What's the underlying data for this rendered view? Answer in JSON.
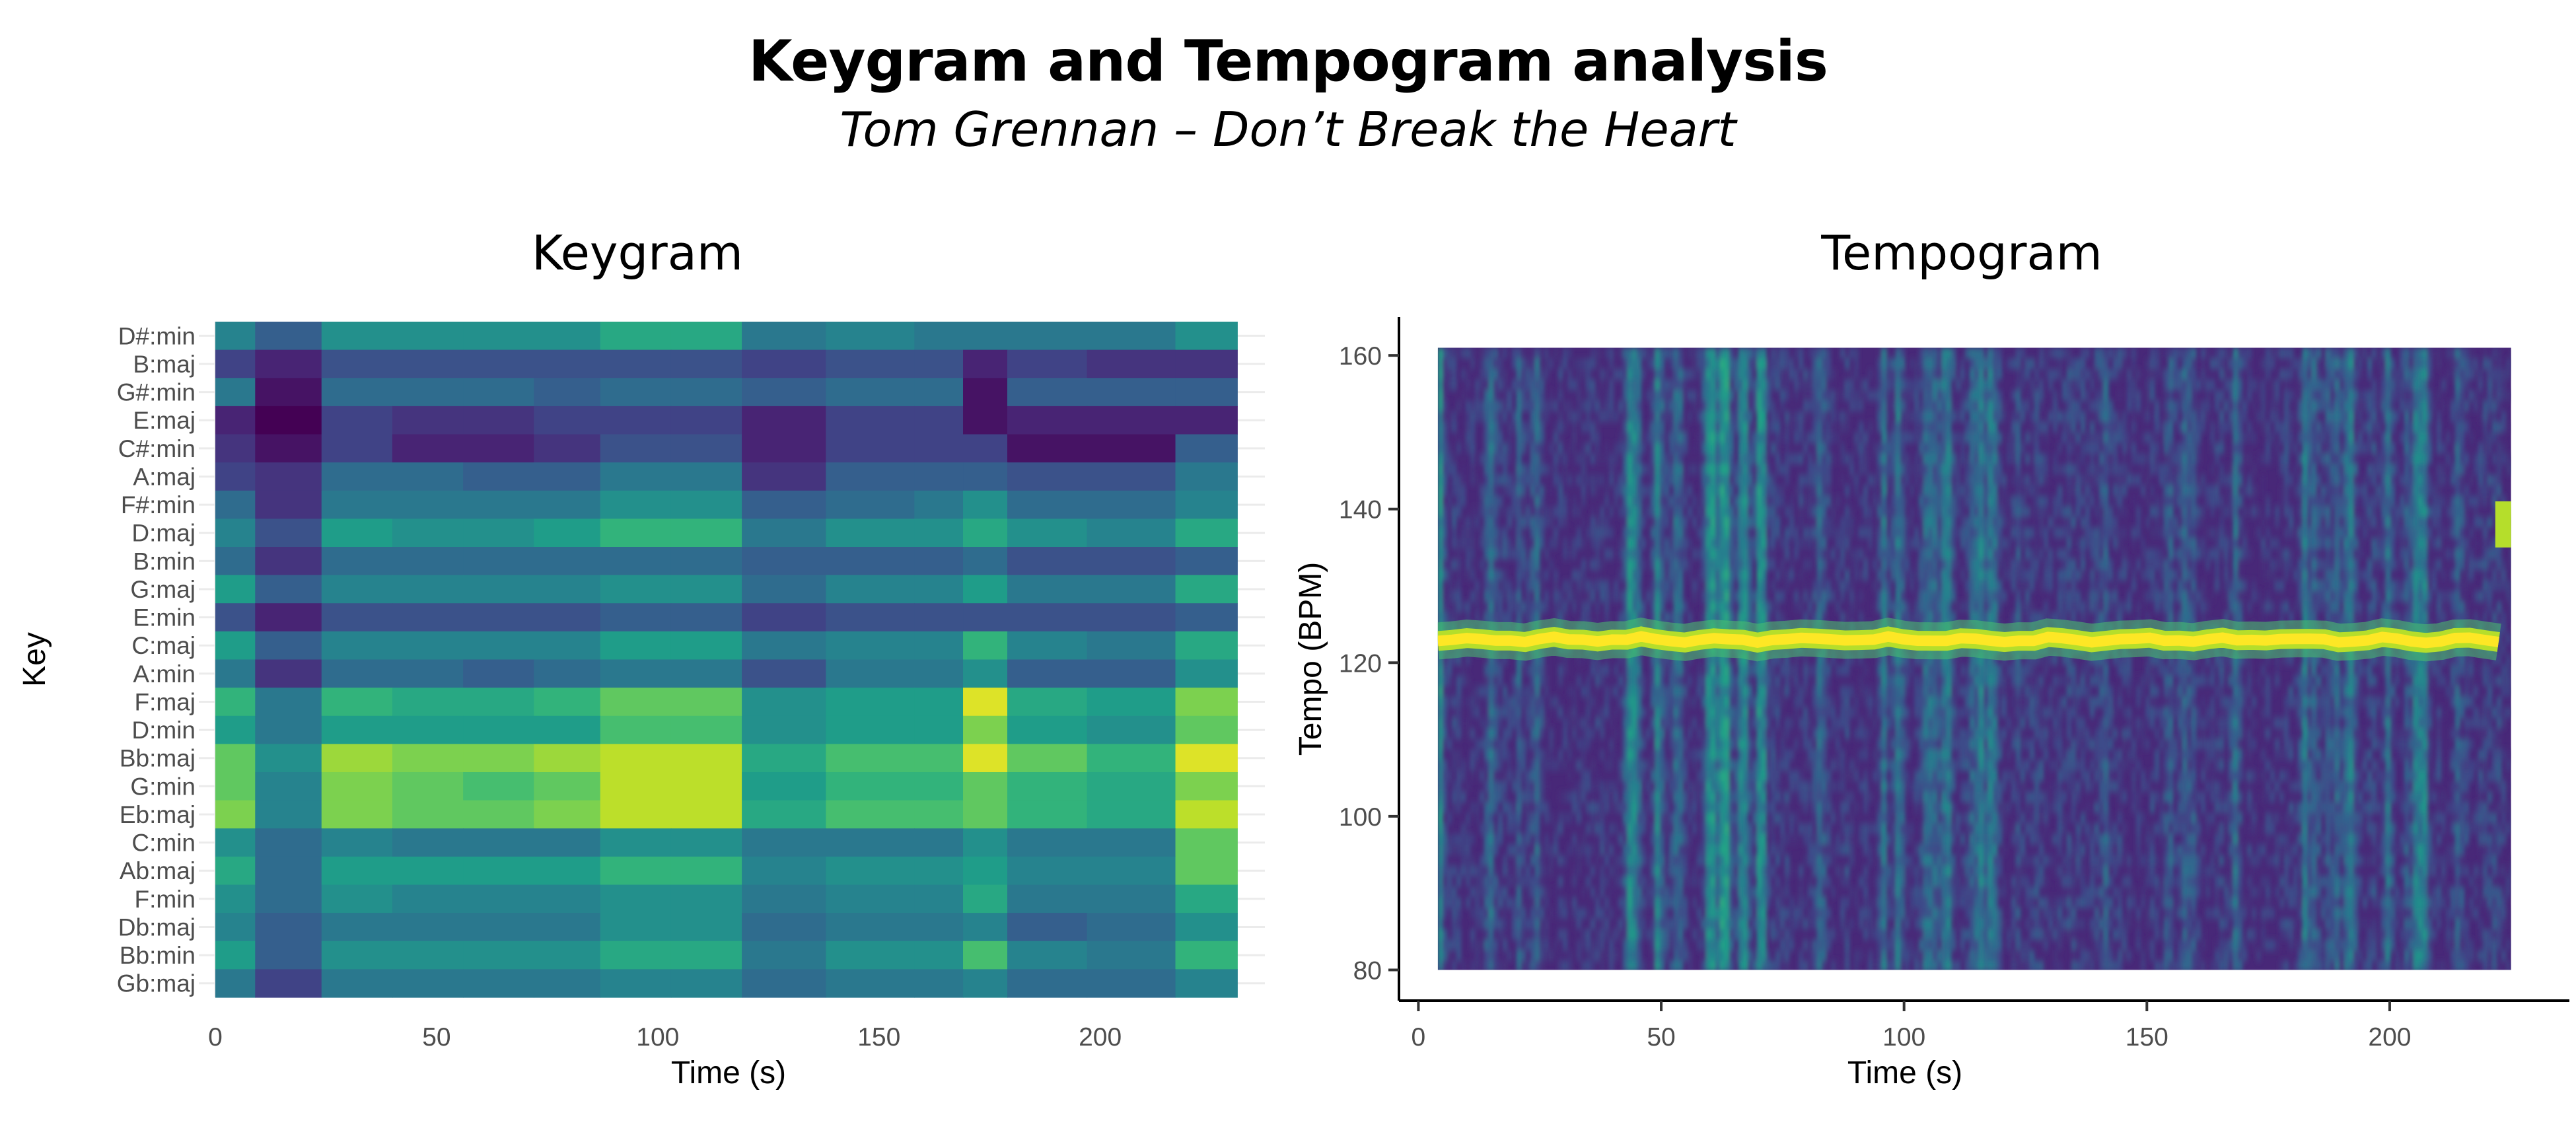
{
  "header": {
    "title": "Keygram and Tempogram analysis",
    "subtitle": "Tom Grennan – Don’t Break the Heart"
  },
  "colors": {
    "viridis": [
      "#440154",
      "#482878",
      "#3e4a89",
      "#31688e",
      "#26828e",
      "#1f9e89",
      "#35b779",
      "#6ece58",
      "#b5de2b",
      "#fde725"
    ],
    "keygram_grid": "#ebebeb",
    "axis_line": "#000000"
  },
  "chart_data": [
    {
      "type": "heatmap",
      "title": "Keygram",
      "xlabel": "Time (s)",
      "ylabel": "Key",
      "xlim": [
        0,
        232
      ],
      "xticks": [
        0,
        50,
        100,
        150,
        200
      ],
      "grid": true,
      "keys": [
        "D#:min",
        "B:maj",
        "G#:min",
        "E:maj",
        "C#:min",
        "A:maj",
        "F#:min",
        "D:maj",
        "B:min",
        "G:maj",
        "E:min",
        "C:maj",
        "A:min",
        "F:maj",
        "D:min",
        "Bb:maj",
        "G:min",
        "Eb:maj",
        "C:min",
        "Ab:maj",
        "F:min",
        "Db:maj",
        "Bb:min",
        "Gb:maj"
      ],
      "segments": [
        {
          "start": 0,
          "end": 9
        },
        {
          "start": 9,
          "end": 24
        },
        {
          "start": 24,
          "end": 40
        },
        {
          "start": 40,
          "end": 56
        },
        {
          "start": 56,
          "end": 72
        },
        {
          "start": 72,
          "end": 87
        },
        {
          "start": 87,
          "end": 103
        },
        {
          "start": 103,
          "end": 119
        },
        {
          "start": 119,
          "end": 138
        },
        {
          "start": 138,
          "end": 158
        },
        {
          "start": 158,
          "end": 169
        },
        {
          "start": 169,
          "end": 179
        },
        {
          "start": 179,
          "end": 197
        },
        {
          "start": 197,
          "end": 217
        },
        {
          "start": 217,
          "end": 231
        }
      ],
      "values": [
        [
          0.45,
          0.3,
          0.5,
          0.5,
          0.5,
          0.5,
          0.6,
          0.6,
          0.4,
          0.45,
          0.4,
          0.4,
          0.4,
          0.4,
          0.5
        ],
        [
          0.2,
          0.1,
          0.25,
          0.25,
          0.25,
          0.25,
          0.25,
          0.25,
          0.2,
          0.25,
          0.25,
          0.1,
          0.2,
          0.15,
          0.15
        ],
        [
          0.4,
          0.05,
          0.35,
          0.35,
          0.35,
          0.3,
          0.35,
          0.35,
          0.3,
          0.35,
          0.35,
          0.05,
          0.3,
          0.3,
          0.3
        ],
        [
          0.1,
          0.0,
          0.2,
          0.15,
          0.15,
          0.2,
          0.2,
          0.2,
          0.1,
          0.2,
          0.2,
          0.05,
          0.1,
          0.1,
          0.1
        ],
        [
          0.15,
          0.05,
          0.2,
          0.1,
          0.1,
          0.15,
          0.25,
          0.25,
          0.1,
          0.2,
          0.2,
          0.2,
          0.05,
          0.05,
          0.3
        ],
        [
          0.2,
          0.15,
          0.35,
          0.35,
          0.3,
          0.3,
          0.4,
          0.4,
          0.15,
          0.3,
          0.3,
          0.3,
          0.25,
          0.25,
          0.4
        ],
        [
          0.35,
          0.15,
          0.4,
          0.4,
          0.4,
          0.4,
          0.5,
          0.5,
          0.3,
          0.35,
          0.4,
          0.5,
          0.35,
          0.35,
          0.45
        ],
        [
          0.45,
          0.25,
          0.55,
          0.5,
          0.5,
          0.55,
          0.65,
          0.65,
          0.4,
          0.5,
          0.5,
          0.6,
          0.5,
          0.45,
          0.6
        ],
        [
          0.35,
          0.15,
          0.35,
          0.35,
          0.35,
          0.35,
          0.35,
          0.35,
          0.3,
          0.3,
          0.3,
          0.35,
          0.25,
          0.25,
          0.3
        ],
        [
          0.55,
          0.3,
          0.45,
          0.45,
          0.45,
          0.45,
          0.5,
          0.5,
          0.35,
          0.45,
          0.45,
          0.55,
          0.4,
          0.4,
          0.6
        ],
        [
          0.25,
          0.1,
          0.25,
          0.25,
          0.25,
          0.25,
          0.3,
          0.3,
          0.2,
          0.25,
          0.25,
          0.25,
          0.25,
          0.25,
          0.3
        ],
        [
          0.55,
          0.3,
          0.45,
          0.45,
          0.45,
          0.45,
          0.55,
          0.55,
          0.4,
          0.45,
          0.45,
          0.65,
          0.45,
          0.4,
          0.6
        ],
        [
          0.4,
          0.15,
          0.35,
          0.35,
          0.3,
          0.35,
          0.4,
          0.4,
          0.25,
          0.4,
          0.4,
          0.5,
          0.3,
          0.3,
          0.5
        ],
        [
          0.65,
          0.4,
          0.65,
          0.6,
          0.6,
          0.65,
          0.75,
          0.75,
          0.5,
          0.55,
          0.55,
          0.95,
          0.6,
          0.55,
          0.8
        ],
        [
          0.55,
          0.4,
          0.55,
          0.55,
          0.55,
          0.55,
          0.7,
          0.7,
          0.5,
          0.55,
          0.55,
          0.8,
          0.55,
          0.5,
          0.75
        ],
        [
          0.75,
          0.5,
          0.85,
          0.8,
          0.8,
          0.85,
          0.9,
          0.9,
          0.6,
          0.7,
          0.7,
          0.95,
          0.75,
          0.65,
          0.95
        ],
        [
          0.75,
          0.45,
          0.8,
          0.75,
          0.7,
          0.75,
          0.9,
          0.9,
          0.55,
          0.65,
          0.65,
          0.75,
          0.65,
          0.6,
          0.8
        ],
        [
          0.8,
          0.45,
          0.8,
          0.75,
          0.75,
          0.8,
          0.9,
          0.9,
          0.6,
          0.7,
          0.7,
          0.75,
          0.65,
          0.6,
          0.9
        ],
        [
          0.5,
          0.35,
          0.45,
          0.4,
          0.4,
          0.4,
          0.5,
          0.5,
          0.4,
          0.4,
          0.4,
          0.5,
          0.4,
          0.4,
          0.75
        ],
        [
          0.6,
          0.35,
          0.55,
          0.55,
          0.55,
          0.55,
          0.65,
          0.65,
          0.45,
          0.5,
          0.5,
          0.55,
          0.45,
          0.45,
          0.75
        ],
        [
          0.5,
          0.35,
          0.5,
          0.45,
          0.45,
          0.45,
          0.5,
          0.5,
          0.4,
          0.45,
          0.45,
          0.6,
          0.4,
          0.4,
          0.6
        ],
        [
          0.45,
          0.3,
          0.4,
          0.4,
          0.4,
          0.4,
          0.5,
          0.5,
          0.35,
          0.4,
          0.4,
          0.45,
          0.3,
          0.35,
          0.5
        ],
        [
          0.55,
          0.3,
          0.5,
          0.5,
          0.5,
          0.5,
          0.6,
          0.6,
          0.4,
          0.5,
          0.5,
          0.7,
          0.45,
          0.4,
          0.65
        ],
        [
          0.4,
          0.2,
          0.4,
          0.4,
          0.4,
          0.4,
          0.45,
          0.45,
          0.35,
          0.4,
          0.4,
          0.45,
          0.35,
          0.35,
          0.45
        ]
      ]
    },
    {
      "type": "heatmap",
      "title": "Tempogram",
      "xlabel": "Time (s)",
      "ylabel": "Tempo (BPM)",
      "xlim": [
        -4,
        237
      ],
      "ylim": [
        76,
        165
      ],
      "xticks": [
        0,
        50,
        100,
        150,
        200
      ],
      "yticks": [
        80,
        100,
        120,
        140,
        160
      ],
      "grid": false,
      "time_range": [
        4,
        225
      ],
      "tempo_range": [
        80,
        161
      ],
      "dominant_tempo": 123
    }
  ]
}
